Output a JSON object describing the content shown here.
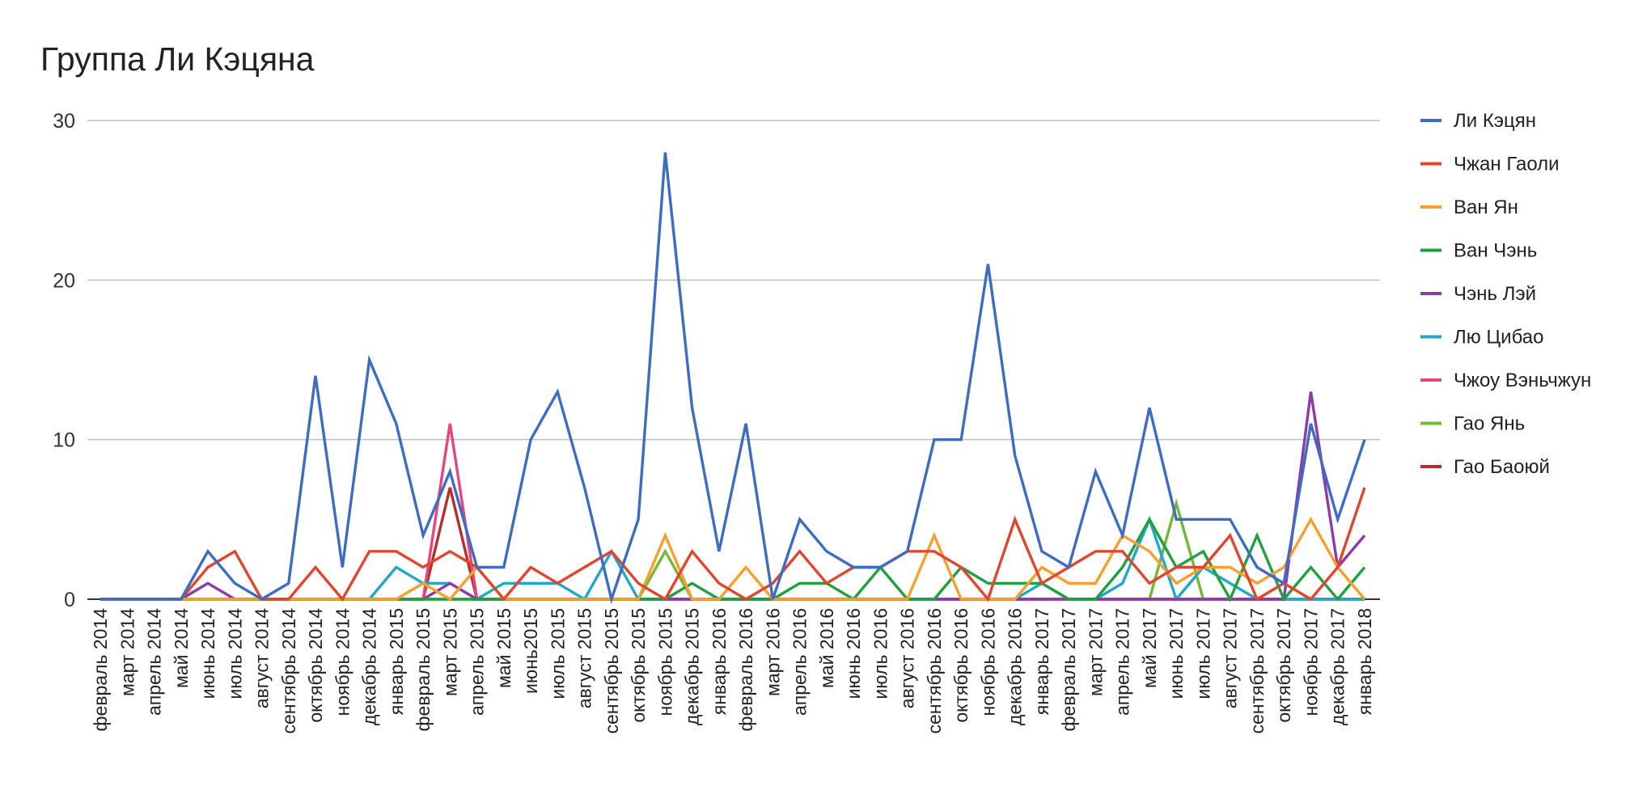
{
  "chart_data": {
    "type": "line",
    "title": "Группа Ли Кэцяна",
    "xlabel": "",
    "ylabel": "",
    "ylim": [
      0,
      30
    ],
    "yticks": [
      0,
      10,
      20,
      30
    ],
    "grid": true,
    "legend_position": "right",
    "categories": [
      "февраль 2014",
      "март 2014",
      "апрель 2014",
      "май 2014",
      "июнь 2014",
      "июль 2014",
      "август 2014",
      "сентябрь 2014",
      "октябрь 2014",
      "ноябрь 2014",
      "декабрь 2014",
      "январь 2015",
      "февраль 2015",
      "март 2015",
      "апрель 2015",
      "май 2015",
      "июнь2015",
      "июль 2015",
      "август 2015",
      "сентябрь 2015",
      "октябрь 2015",
      "ноябрь 2015",
      "декабрь 2015",
      "январь 2016",
      "февраль 2016",
      "март 2016",
      "апрель 2016",
      "май 2016",
      "июнь 2016",
      "июль 2016",
      "август 2016",
      "сентябрь 2016",
      "октябрь 2016",
      "ноябрь 2016",
      "декабрь 2016",
      "январь 2017",
      "февраль 2017",
      "март 2017",
      "апрель 2017",
      "май 2017",
      "июнь 2017",
      "июль 2017",
      "август 2017",
      "сентябрь 2017",
      "октябрь 2017",
      "ноябрь 2017",
      "декабрь 2017",
      "январь 2018"
    ],
    "series": [
      {
        "name": "Ли Кэцян",
        "color": "#3d6cc0",
        "values": [
          0,
          0,
          0,
          0,
          3,
          1,
          0,
          1,
          14,
          2,
          15,
          11,
          4,
          8,
          2,
          2,
          10,
          13,
          7,
          0,
          5,
          28,
          12,
          3,
          11,
          0,
          5,
          3,
          2,
          2,
          3,
          10,
          10,
          21,
          9,
          3,
          2,
          8,
          4,
          12,
          5,
          5,
          5,
          2,
          1,
          11,
          5,
          10
        ]
      },
      {
        "name": "Чжан Гаоли",
        "color": "#e0462e",
        "values": [
          0,
          0,
          0,
          0,
          2,
          3,
          0,
          0,
          2,
          0,
          3,
          3,
          2,
          3,
          2,
          0,
          2,
          1,
          2,
          3,
          1,
          0,
          3,
          1,
          0,
          1,
          3,
          1,
          2,
          2,
          3,
          3,
          2,
          0,
          5,
          1,
          2,
          3,
          3,
          1,
          2,
          2,
          4,
          0,
          1,
          0,
          2,
          7
        ]
      },
      {
        "name": "Ван Ян",
        "color": "#f7a02e",
        "values": [
          0,
          0,
          0,
          0,
          0,
          0,
          0,
          0,
          0,
          0,
          0,
          0,
          1,
          0,
          2,
          0,
          0,
          0,
          0,
          0,
          0,
          4,
          0,
          0,
          2,
          0,
          0,
          0,
          0,
          0,
          0,
          4,
          0,
          0,
          0,
          2,
          1,
          1,
          4,
          3,
          1,
          2,
          2,
          1,
          2,
          5,
          2,
          0
        ]
      },
      {
        "name": "Ван Чэнь",
        "color": "#21a040",
        "values": [
          0,
          0,
          0,
          0,
          0,
          0,
          0,
          0,
          0,
          0,
          0,
          0,
          0,
          0,
          0,
          0,
          0,
          0,
          0,
          0,
          0,
          0,
          1,
          0,
          0,
          0,
          1,
          1,
          0,
          2,
          0,
          0,
          2,
          1,
          1,
          1,
          0,
          0,
          2,
          5,
          2,
          3,
          0,
          4,
          0,
          2,
          0,
          2
        ]
      },
      {
        "name": "Чэнь Лэй",
        "color": "#8e3aa8",
        "values": [
          0,
          0,
          0,
          0,
          1,
          0,
          0,
          0,
          0,
          0,
          0,
          0,
          0,
          1,
          0,
          0,
          0,
          0,
          0,
          0,
          0,
          0,
          0,
          0,
          0,
          0,
          0,
          0,
          0,
          0,
          0,
          0,
          0,
          0,
          0,
          0,
          0,
          0,
          0,
          0,
          0,
          0,
          0,
          0,
          0,
          13,
          2,
          4
        ]
      },
      {
        "name": "Лю Цибао",
        "color": "#21a8c9",
        "values": [
          0,
          0,
          0,
          0,
          0,
          0,
          0,
          0,
          0,
          0,
          0,
          2,
          1,
          1,
          0,
          1,
          1,
          1,
          0,
          3,
          0,
          0,
          0,
          0,
          0,
          0,
          0,
          0,
          0,
          0,
          0,
          0,
          0,
          0,
          0,
          1,
          0,
          0,
          1,
          5,
          0,
          2,
          1,
          0,
          0,
          0,
          0,
          0
        ]
      },
      {
        "name": "Чжоу Вэньчжун",
        "color": "#e8457a",
        "values": [
          0,
          0,
          0,
          0,
          0,
          0,
          0,
          0,
          0,
          0,
          0,
          0,
          0,
          11,
          0,
          0,
          0,
          0,
          0,
          0,
          0,
          0,
          0,
          0,
          0,
          0,
          0,
          0,
          0,
          0,
          0,
          0,
          0,
          0,
          0,
          0,
          0,
          0,
          0,
          0,
          0,
          0,
          0,
          0,
          0,
          0,
          0,
          0
        ]
      },
      {
        "name": "Гао Янь",
        "color": "#74b836",
        "values": [
          0,
          0,
          0,
          0,
          0,
          0,
          0,
          0,
          0,
          0,
          0,
          0,
          0,
          0,
          0,
          0,
          0,
          0,
          0,
          0,
          0,
          3,
          0,
          0,
          0,
          0,
          0,
          0,
          0,
          0,
          0,
          0,
          0,
          0,
          0,
          0,
          0,
          0,
          0,
          0,
          6,
          0,
          0,
          0,
          0,
          0,
          0,
          0
        ]
      },
      {
        "name": "Гао Баоюй",
        "color": "#b52d2d",
        "values": [
          0,
          0,
          0,
          0,
          0,
          0,
          0,
          0,
          0,
          0,
          0,
          0,
          0,
          7,
          0,
          0,
          0,
          0,
          0,
          0,
          0,
          0,
          0,
          0,
          0,
          0,
          0,
          0,
          0,
          0,
          0,
          0,
          0,
          0,
          0,
          0,
          0,
          0,
          0,
          0,
          0,
          0,
          0,
          0,
          0,
          0,
          0,
          0
        ]
      }
    ]
  }
}
